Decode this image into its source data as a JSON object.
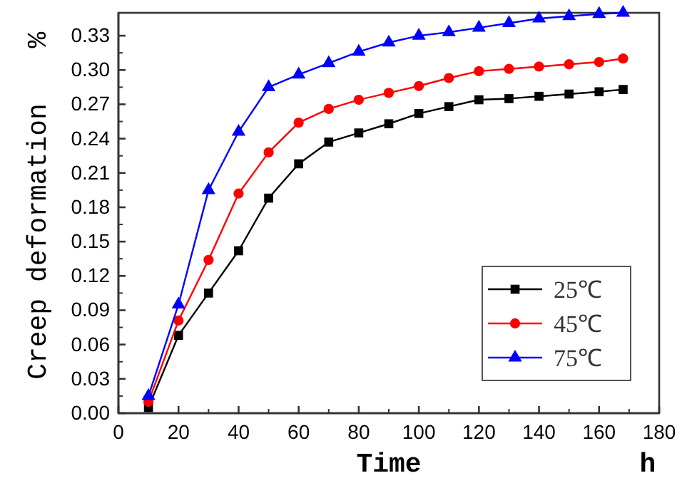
{
  "chart_data": {
    "type": "line",
    "xlabel": "Time",
    "ylabel": "Creep deformation",
    "annotations": [
      "h",
      "%"
    ],
    "x": [
      10,
      20,
      30,
      40,
      50,
      60,
      70,
      80,
      90,
      100,
      110,
      120,
      130,
      140,
      150,
      160,
      168
    ],
    "series": [
      {
        "name": "25℃",
        "color": "#000000",
        "marker": "square",
        "values": [
          0.005,
          0.068,
          0.105,
          0.142,
          0.188,
          0.218,
          0.237,
          0.245,
          0.253,
          0.262,
          0.268,
          0.274,
          0.275,
          0.277,
          0.279,
          0.281,
          0.283
        ]
      },
      {
        "name": "45℃",
        "color": "#ff0000",
        "marker": "circle",
        "values": [
          0.01,
          0.081,
          0.134,
          0.192,
          0.228,
          0.254,
          0.266,
          0.274,
          0.28,
          0.286,
          0.293,
          0.299,
          0.301,
          0.303,
          0.305,
          0.307,
          0.31
        ]
      },
      {
        "name": "75℃",
        "color": "#0000ff",
        "marker": "triangle",
        "values": [
          0.015,
          0.095,
          0.195,
          0.246,
          0.285,
          0.296,
          0.306,
          0.316,
          0.324,
          0.33,
          0.333,
          0.337,
          0.341,
          0.345,
          0.347,
          0.349,
          0.35
        ]
      }
    ],
    "xlim": [
      0,
      180
    ],
    "xticks": [
      0,
      20,
      40,
      60,
      80,
      100,
      120,
      140,
      160,
      180
    ],
    "ylim": [
      0,
      0.35
    ],
    "yticks": [
      {
        "value": 0,
        "label": "0.00"
      },
      {
        "value": 0.03,
        "label": "0.03"
      },
      {
        "value": 0.06,
        "label": "0.06"
      },
      {
        "value": 0.09,
        "label": "0.09"
      },
      {
        "value": 0.12,
        "label": "0.12"
      },
      {
        "value": 0.15,
        "label": "0.15"
      },
      {
        "value": 0.18,
        "label": "0.18"
      },
      {
        "value": 0.21,
        "label": "0.21"
      },
      {
        "value": 0.24,
        "label": "0.24"
      },
      {
        "value": 0.27,
        "label": "0.27"
      },
      {
        "value": 0.3,
        "label": "0.30"
      },
      {
        "value": 0.33,
        "label": "0.33"
      }
    ],
    "grid": false,
    "legend": "bottom right",
    "line_style": "solid"
  }
}
